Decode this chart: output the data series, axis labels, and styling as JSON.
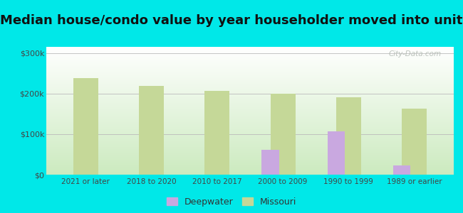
{
  "title": "Median house/condo value by year householder moved into unit",
  "categories": [
    "2021 or later",
    "2018 to 2020",
    "2010 to 2017",
    "2000 to 2009",
    "1990 to 1999",
    "1989 or earlier"
  ],
  "deepwater_values": [
    null,
    null,
    null,
    62000,
    107000,
    22000
  ],
  "missouri_values": [
    238000,
    218000,
    207000,
    200000,
    190000,
    163000
  ],
  "deepwater_color": "#c9a8e0",
  "missouri_color": "#c5d898",
  "background_color": "#00e8e8",
  "plot_bg_top": "#e8f5e0",
  "plot_bg_bottom": "#c8e8c0",
  "yticks": [
    0,
    100000,
    200000,
    300000
  ],
  "ylim": [
    0,
    315000
  ],
  "watermark": "City-Data.com",
  "legend_deepwater": "Deepwater",
  "legend_missouri": "Missouri",
  "title_fontsize": 13,
  "bar_width": 0.38
}
